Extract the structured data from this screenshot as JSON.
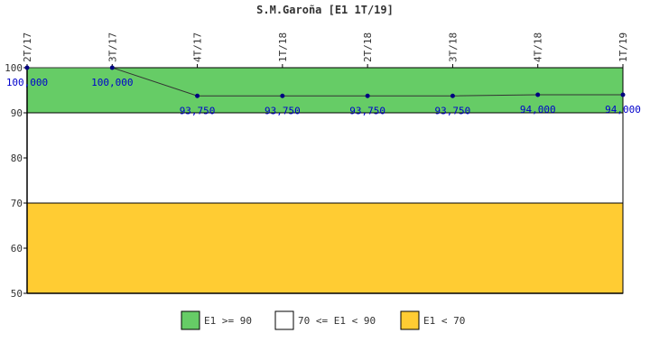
{
  "chart_data": {
    "type": "line",
    "title": "S.M.Garoña [E1 1T/19]",
    "categories": [
      "2T/17",
      "3T/17",
      "4T/17",
      "1T/18",
      "2T/18",
      "3T/18",
      "4T/18",
      "1T/19"
    ],
    "series": [
      {
        "values": [
          100.0,
          100.0,
          93.75,
          93.75,
          93.75,
          93.75,
          94.0,
          94.0
        ],
        "labels": [
          "100,000",
          "100,000",
          "93,750",
          "93,750",
          "93,750",
          "93,750",
          "94,000",
          "94,000"
        ],
        "color": "#000080"
      }
    ],
    "ylim": [
      50,
      100
    ],
    "yticks": [
      "50",
      "60",
      "70",
      "80",
      "90",
      "100"
    ],
    "bands": [
      {
        "from": 90,
        "to": 100,
        "color": "#66cc66"
      },
      {
        "from": 70,
        "to": 90,
        "color": "#ffffff"
      },
      {
        "from": 50,
        "to": 70,
        "color": "#ffcc33"
      }
    ],
    "legend": {
      "position": "bottom",
      "items": [
        {
          "label": "E1 >= 90",
          "color": "#66cc66"
        },
        {
          "label": "70 <= E1 < 90",
          "color": "#ffffff"
        },
        {
          "label": "E1 < 70",
          "color": "#ffcc33"
        }
      ]
    }
  }
}
